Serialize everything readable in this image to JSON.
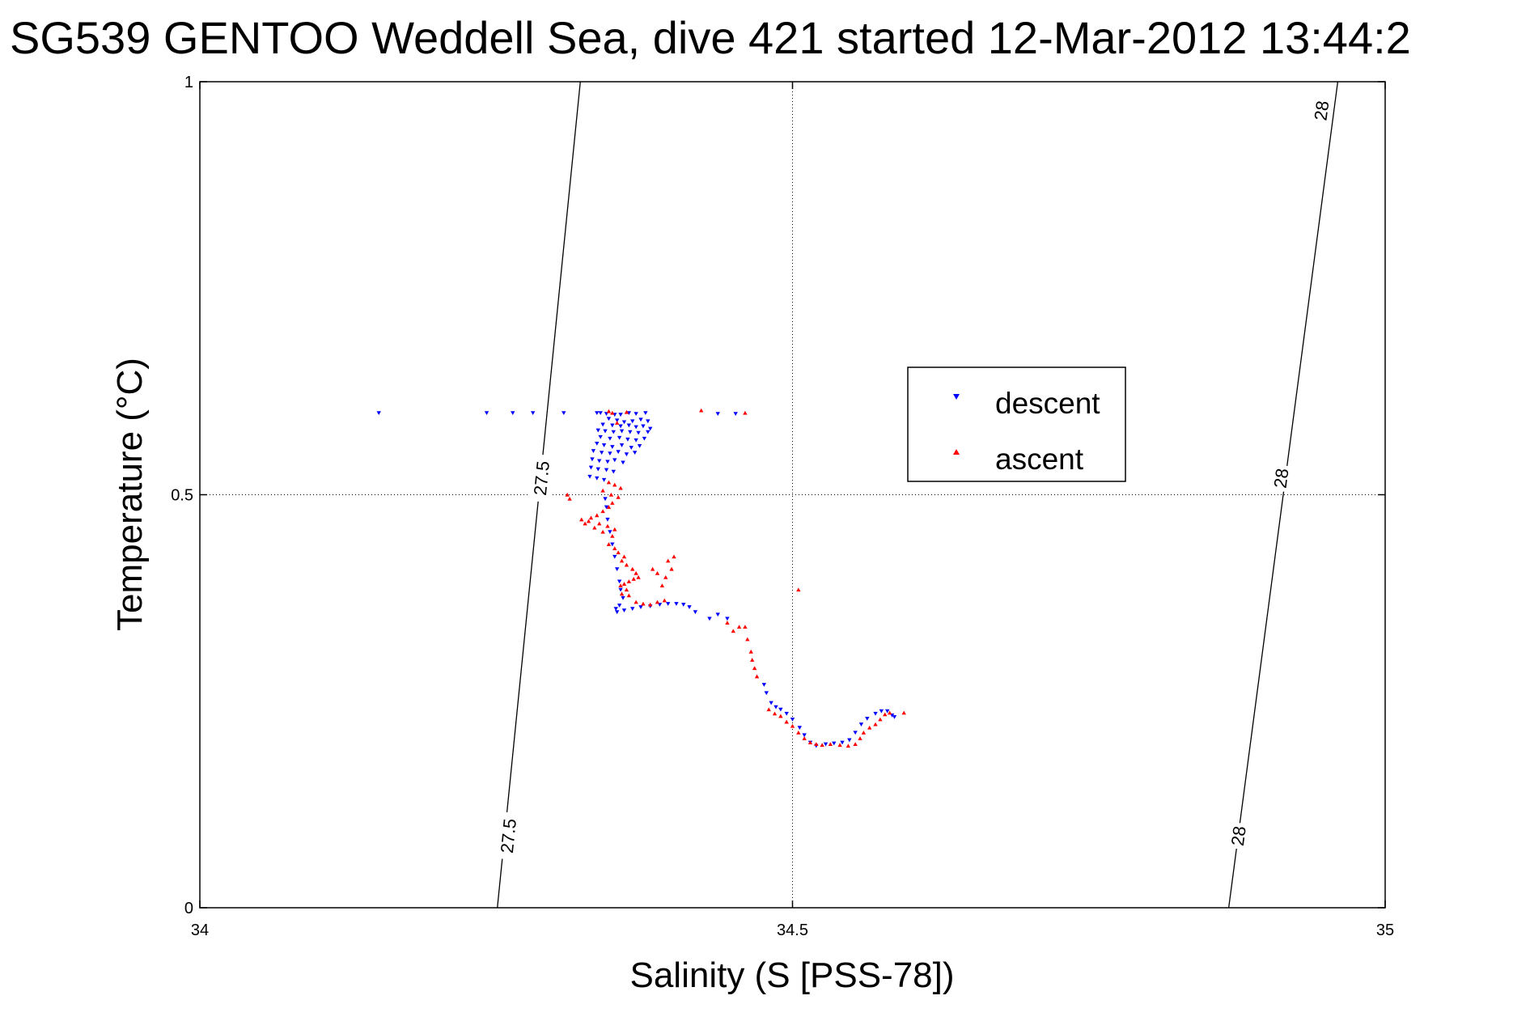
{
  "chart_data": {
    "type": "scatter",
    "title": "SG539 GENTOO Weddell Sea, dive 421 started 12-Mar-2012 13:44:2",
    "xlabel": "Salinity (S [PSS-78])",
    "ylabel": "Temperature (°C)",
    "xlim": [
      34,
      35
    ],
    "ylim": [
      0,
      1
    ],
    "xticks": [
      {
        "value": 34,
        "label": "34"
      },
      {
        "value": 34.5,
        "label": "34.5"
      },
      {
        "value": 35,
        "label": "35"
      }
    ],
    "yticks": [
      {
        "value": 0,
        "label": "0"
      },
      {
        "value": 0.5,
        "label": "0.5"
      },
      {
        "value": 1,
        "label": "1"
      }
    ],
    "grid": true,
    "legend": {
      "placement": "center-right",
      "entries": [
        "descent",
        "ascent"
      ]
    },
    "isopycnals": [
      {
        "value": 27.5,
        "points": [
          [
            34.251,
            0.0
          ],
          [
            34.321,
            1.0
          ]
        ],
        "labels": [
          {
            "text": "27.5",
            "at": [
              34.26,
              0.087
            ]
          },
          {
            "text": "27.5",
            "at": [
              34.288,
              0.52
            ]
          }
        ]
      },
      {
        "value": 28,
        "points": [
          [
            34.868,
            0.0
          ],
          [
            34.96,
            1.0
          ]
        ],
        "labels": [
          {
            "text": "28",
            "at": [
              34.876,
              0.087
            ]
          },
          {
            "text": "28",
            "at": [
              34.912,
              0.52
            ]
          },
          {
            "text": "28",
            "at": [
              34.946,
              0.965
            ]
          }
        ]
      }
    ],
    "series": [
      {
        "name": "descent",
        "color": "#0000ff",
        "marker": "triangle-down",
        "points": [
          [
            34.151,
            0.599
          ],
          [
            34.242,
            0.599
          ],
          [
            34.264,
            0.599
          ],
          [
            34.281,
            0.599
          ],
          [
            34.307,
            0.599
          ],
          [
            34.335,
            0.599
          ],
          [
            34.338,
            0.599
          ],
          [
            34.343,
            0.598
          ],
          [
            34.35,
            0.597
          ],
          [
            34.355,
            0.597
          ],
          [
            34.362,
            0.599
          ],
          [
            34.368,
            0.598
          ],
          [
            34.376,
            0.599
          ],
          [
            34.437,
            0.598
          ],
          [
            34.452,
            0.598
          ],
          [
            34.345,
            0.592
          ],
          [
            34.352,
            0.59
          ],
          [
            34.358,
            0.588
          ],
          [
            34.365,
            0.589
          ],
          [
            34.372,
            0.591
          ],
          [
            34.378,
            0.589
          ],
          [
            34.34,
            0.585
          ],
          [
            34.348,
            0.584
          ],
          [
            34.355,
            0.583
          ],
          [
            34.362,
            0.584
          ],
          [
            34.368,
            0.582
          ],
          [
            34.374,
            0.583
          ],
          [
            34.38,
            0.58
          ],
          [
            34.336,
            0.578
          ],
          [
            34.342,
            0.577
          ],
          [
            34.349,
            0.576
          ],
          [
            34.356,
            0.577
          ],
          [
            34.363,
            0.576
          ],
          [
            34.37,
            0.575
          ],
          [
            34.378,
            0.576
          ],
          [
            34.338,
            0.57
          ],
          [
            34.346,
            0.568
          ],
          [
            34.354,
            0.569
          ],
          [
            34.361,
            0.567
          ],
          [
            34.368,
            0.566
          ],
          [
            34.375,
            0.568
          ],
          [
            34.335,
            0.562
          ],
          [
            34.341,
            0.56
          ],
          [
            34.348,
            0.558
          ],
          [
            34.356,
            0.56
          ],
          [
            34.364,
            0.557
          ],
          [
            34.371,
            0.559
          ],
          [
            34.332,
            0.553
          ],
          [
            34.339,
            0.551
          ],
          [
            34.346,
            0.55
          ],
          [
            34.353,
            0.552
          ],
          [
            34.36,
            0.549
          ],
          [
            34.367,
            0.551
          ],
          [
            34.331,
            0.543
          ],
          [
            34.337,
            0.541
          ],
          [
            34.344,
            0.54
          ],
          [
            34.35,
            0.542
          ],
          [
            34.357,
            0.539
          ],
          [
            34.33,
            0.533
          ],
          [
            34.336,
            0.531
          ],
          [
            34.343,
            0.53
          ],
          [
            34.349,
            0.528
          ],
          [
            34.329,
            0.522
          ],
          [
            34.335,
            0.52
          ],
          [
            34.341,
            0.518
          ],
          [
            34.342,
            0.495
          ],
          [
            34.343,
            0.485
          ],
          [
            34.344,
            0.47
          ],
          [
            34.346,
            0.455
          ],
          [
            34.348,
            0.44
          ],
          [
            34.35,
            0.425
          ],
          [
            34.352,
            0.41
          ],
          [
            34.354,
            0.395
          ],
          [
            34.355,
            0.385
          ],
          [
            34.357,
            0.375
          ],
          [
            34.354,
            0.366
          ],
          [
            34.351,
            0.362
          ],
          [
            34.352,
            0.358
          ],
          [
            34.358,
            0.36
          ],
          [
            34.365,
            0.362
          ],
          [
            34.372,
            0.364
          ],
          [
            34.38,
            0.365
          ],
          [
            34.388,
            0.367
          ],
          [
            34.395,
            0.368
          ],
          [
            34.402,
            0.368
          ],
          [
            34.408,
            0.367
          ],
          [
            34.413,
            0.364
          ],
          [
            34.418,
            0.358
          ],
          [
            34.43,
            0.35
          ],
          [
            34.437,
            0.355
          ],
          [
            34.445,
            0.35
          ],
          [
            34.476,
            0.27
          ],
          [
            34.478,
            0.26
          ],
          [
            34.482,
            0.248
          ],
          [
            34.486,
            0.243
          ],
          [
            34.49,
            0.24
          ],
          [
            34.495,
            0.235
          ],
          [
            34.5,
            0.228
          ],
          [
            34.506,
            0.218
          ],
          [
            34.51,
            0.209
          ],
          [
            34.515,
            0.2
          ],
          [
            34.52,
            0.196
          ],
          [
            34.528,
            0.198
          ],
          [
            34.535,
            0.199
          ],
          [
            34.542,
            0.2
          ],
          [
            34.548,
            0.203
          ],
          [
            34.553,
            0.212
          ],
          [
            34.558,
            0.222
          ],
          [
            34.563,
            0.229
          ],
          [
            34.57,
            0.235
          ],
          [
            34.575,
            0.238
          ],
          [
            34.58,
            0.238
          ],
          [
            34.584,
            0.233
          ],
          [
            34.586,
            0.231
          ]
        ]
      },
      {
        "name": "ascent",
        "color": "#ff0000",
        "marker": "triangle-up",
        "points": [
          [
            34.345,
            0.601
          ],
          [
            34.348,
            0.599
          ],
          [
            34.36,
            0.6
          ],
          [
            34.423,
            0.602
          ],
          [
            34.46,
            0.599
          ],
          [
            34.352,
            0.587
          ],
          [
            34.345,
            0.515
          ],
          [
            34.35,
            0.512
          ],
          [
            34.355,
            0.508
          ],
          [
            34.34,
            0.505
          ],
          [
            34.347,
            0.5
          ],
          [
            34.353,
            0.497
          ],
          [
            34.348,
            0.49
          ],
          [
            34.345,
            0.485
          ],
          [
            34.34,
            0.48
          ],
          [
            34.335,
            0.475
          ],
          [
            34.33,
            0.472
          ],
          [
            34.328,
            0.468
          ],
          [
            34.337,
            0.465
          ],
          [
            34.344,
            0.462
          ],
          [
            34.35,
            0.458
          ],
          [
            34.333,
            0.46
          ],
          [
            34.34,
            0.455
          ],
          [
            34.348,
            0.45
          ],
          [
            34.325,
            0.465
          ],
          [
            34.322,
            0.47
          ],
          [
            34.31,
            0.5
          ],
          [
            34.312,
            0.495
          ],
          [
            34.345,
            0.44
          ],
          [
            34.35,
            0.435
          ],
          [
            34.353,
            0.43
          ],
          [
            34.358,
            0.425
          ],
          [
            34.356,
            0.42
          ],
          [
            34.36,
            0.415
          ],
          [
            34.365,
            0.41
          ],
          [
            34.368,
            0.405
          ],
          [
            34.37,
            0.4
          ],
          [
            34.366,
            0.398
          ],
          [
            34.362,
            0.395
          ],
          [
            34.358,
            0.392
          ],
          [
            34.355,
            0.39
          ],
          [
            34.36,
            0.385
          ],
          [
            34.356,
            0.38
          ],
          [
            34.362,
            0.378
          ],
          [
            34.368,
            0.37
          ],
          [
            34.374,
            0.368
          ],
          [
            34.38,
            0.367
          ],
          [
            34.386,
            0.37
          ],
          [
            34.392,
            0.372
          ],
          [
            34.39,
            0.39
          ],
          [
            34.393,
            0.4
          ],
          [
            34.398,
            0.41
          ],
          [
            34.4,
            0.425
          ],
          [
            34.395,
            0.42
          ],
          [
            34.382,
            0.41
          ],
          [
            34.386,
            0.405
          ],
          [
            34.505,
            0.385
          ],
          [
            34.445,
            0.345
          ],
          [
            34.45,
            0.335
          ],
          [
            34.455,
            0.34
          ],
          [
            34.46,
            0.34
          ],
          [
            34.462,
            0.325
          ],
          [
            34.465,
            0.31
          ],
          [
            34.466,
            0.3
          ],
          [
            34.468,
            0.29
          ],
          [
            34.47,
            0.28
          ],
          [
            34.48,
            0.24
          ],
          [
            34.485,
            0.235
          ],
          [
            34.49,
            0.232
          ],
          [
            34.495,
            0.225
          ],
          [
            34.5,
            0.22
          ],
          [
            34.505,
            0.212
          ],
          [
            34.51,
            0.205
          ],
          [
            34.515,
            0.2
          ],
          [
            34.52,
            0.198
          ],
          [
            34.525,
            0.197
          ],
          [
            34.532,
            0.198
          ],
          [
            34.54,
            0.197
          ],
          [
            34.547,
            0.196
          ],
          [
            34.553,
            0.198
          ],
          [
            34.557,
            0.205
          ],
          [
            34.56,
            0.212
          ],
          [
            34.565,
            0.218
          ],
          [
            34.57,
            0.222
          ],
          [
            34.574,
            0.228
          ],
          [
            34.578,
            0.234
          ],
          [
            34.582,
            0.236
          ],
          [
            34.594,
            0.236
          ]
        ]
      }
    ]
  }
}
